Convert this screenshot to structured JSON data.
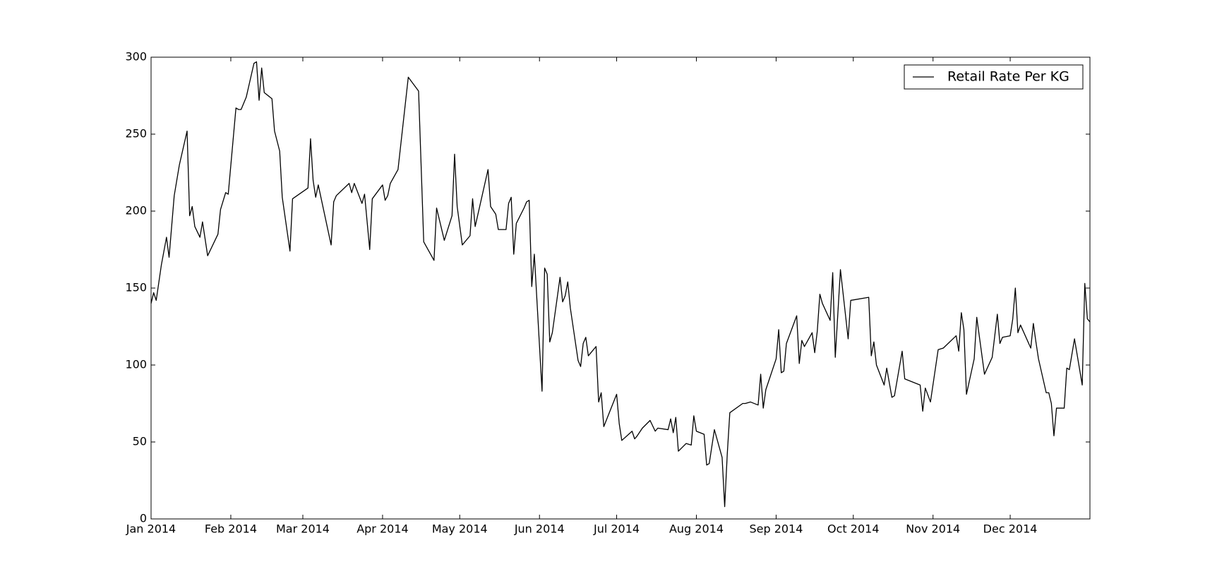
{
  "chart_data": {
    "type": "line",
    "x": [
      0,
      1,
      2,
      4,
      6,
      7,
      9,
      11,
      14,
      15,
      16,
      17,
      19,
      20,
      22,
      26,
      27,
      29,
      30,
      33,
      34,
      35,
      37,
      40,
      41,
      42,
      43,
      44,
      47,
      48,
      50,
      51,
      54,
      55,
      61,
      62,
      63,
      64,
      65,
      70,
      71,
      72,
      77,
      78,
      79,
      82,
      83,
      85,
      86,
      90,
      91,
      92,
      93,
      96,
      100,
      104,
      106,
      110,
      111,
      114,
      117,
      118,
      119,
      121,
      124,
      125,
      126,
      131,
      132,
      134,
      135,
      138,
      139,
      140,
      141,
      142,
      145,
      146,
      147,
      148,
      149,
      152,
      153,
      154,
      155,
      156,
      159,
      160,
      161,
      162,
      163,
      166,
      167,
      168,
      169,
      170,
      173,
      174,
      175,
      176,
      181,
      182,
      183,
      187,
      188,
      189,
      191,
      194,
      196,
      197,
      201,
      202,
      203,
      204,
      205,
      208,
      210,
      211,
      212,
      215,
      216,
      217,
      219,
      222,
      223,
      224,
      225,
      230,
      231,
      233,
      236,
      237,
      238,
      239,
      243,
      244,
      245,
      246,
      247,
      251,
      252,
      253,
      254,
      257,
      258,
      259,
      260,
      261,
      264,
      265,
      266,
      268,
      271,
      272,
      279,
      280,
      281,
      282,
      285,
      286,
      288,
      289,
      292,
      293,
      299,
      300,
      301,
      303,
      306,
      308,
      313,
      314,
      315,
      316,
      317,
      320,
      321,
      324,
      327,
      329,
      330,
      331,
      334,
      335,
      336,
      337,
      338,
      342,
      343,
      344,
      345,
      348,
      349,
      350,
      351,
      352,
      355,
      356,
      357,
      359,
      362,
      363,
      364,
      365
    ],
    "series": [
      {
        "name": "Retail Rate Per KG",
        "color": "#000000",
        "values": [
          140,
          147,
          142,
          165,
          183,
          170,
          210,
          230,
          252,
          197,
          203,
          190,
          183,
          193,
          171,
          185,
          201,
          212,
          211,
          267,
          266,
          266,
          274,
          296,
          297,
          272,
          293,
          277,
          273,
          252,
          239,
          209,
          174,
          208,
          215,
          247,
          220,
          209,
          217,
          178,
          206,
          210,
          218,
          212,
          218,
          205,
          211,
          175,
          208,
          217,
          207,
          210,
          218,
          227,
          287,
          278,
          180,
          168,
          202,
          181,
          197,
          237,
          203,
          178,
          184,
          208,
          190,
          227,
          203,
          198,
          188,
          188,
          205,
          209,
          172,
          192,
          202,
          206,
          207,
          151,
          172,
          83,
          163,
          159,
          115,
          121,
          157,
          141,
          145,
          154,
          137,
          103,
          99,
          114,
          118,
          106,
          112,
          76,
          82,
          60,
          81,
          62,
          51,
          57,
          52,
          54,
          59,
          64,
          57,
          59,
          58,
          65,
          56,
          66,
          44,
          49,
          48,
          67,
          57,
          55,
          35,
          36,
          58,
          40,
          8,
          42,
          69,
          75,
          75,
          76,
          74,
          94,
          72,
          84,
          104,
          123,
          95,
          96,
          114,
          132,
          101,
          116,
          112,
          121,
          108,
          122,
          146,
          140,
          129,
          160,
          105,
          162,
          117,
          142,
          144,
          106,
          115,
          100,
          87,
          98,
          79,
          80,
          109,
          91,
          87,
          70,
          85,
          76,
          110,
          111,
          119,
          109,
          134,
          123,
          81,
          104,
          131,
          94,
          105,
          133,
          114,
          118,
          119,
          130,
          150,
          121,
          126,
          111,
          127,
          115,
          104,
          82,
          82,
          75,
          54,
          72,
          72,
          98,
          97,
          117,
          87,
          153,
          130,
          128
        ]
      }
    ],
    "xlim": [
      0,
      365
    ],
    "xticks": [
      {
        "value": 0,
        "label": "Jan 2014"
      },
      {
        "value": 31,
        "label": "Feb 2014"
      },
      {
        "value": 59,
        "label": "Mar 2014"
      },
      {
        "value": 90,
        "label": "Apr 2014"
      },
      {
        "value": 120,
        "label": "May 2014"
      },
      {
        "value": 151,
        "label": "Jun 2014"
      },
      {
        "value": 181,
        "label": "Jul 2014"
      },
      {
        "value": 212,
        "label": "Aug 2014"
      },
      {
        "value": 243,
        "label": "Sep 2014"
      },
      {
        "value": 273,
        "label": "Oct 2014"
      },
      {
        "value": 304,
        "label": "Nov 2014"
      },
      {
        "value": 334,
        "label": "Dec 2014"
      }
    ],
    "ylim": [
      0,
      300
    ],
    "yticks": [
      0,
      50,
      100,
      150,
      200,
      250,
      300
    ],
    "legend": "upper right"
  }
}
